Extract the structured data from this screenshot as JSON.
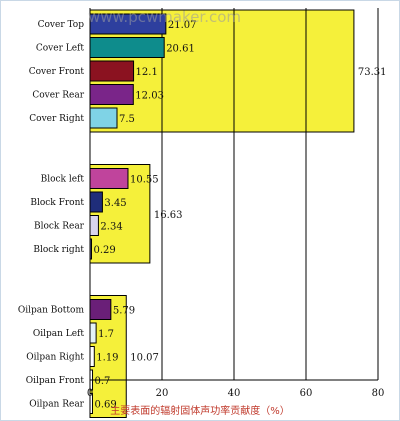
{
  "chart_data": {
    "type": "bar",
    "orientation": "horizontal",
    "title": "",
    "xlabel": "主要表面的辐射固体声功率贡献度（%）",
    "ylabel": "",
    "xlim": [
      0,
      80
    ],
    "xticks": [
      0,
      20,
      40,
      60,
      80
    ],
    "grid": true,
    "watermark": "www.pcwmaker.com",
    "groups": [
      {
        "total": 73.31,
        "total_label": "73.31",
        "bars": [
          {
            "category": "Cover Top",
            "value": 21.07,
            "label": "21.07",
            "color": "#2e3f9e"
          },
          {
            "category": "Cover Left",
            "value": 20.61,
            "label": "20.61",
            "color": "#0e8c8c"
          },
          {
            "category": "Cover Front",
            "value": 12.1,
            "label": "12.1",
            "color": "#8b1220"
          },
          {
            "category": "Cover Rear",
            "value": 12.03,
            "label": "12.03",
            "color": "#7a2589"
          },
          {
            "category": "Cover Right",
            "value": 7.5,
            "label": "7.5",
            "color": "#7fd3e6"
          }
        ]
      },
      {
        "total": 16.63,
        "total_label": "16.63",
        "bars": [
          {
            "category": "Block left",
            "value": 10.55,
            "label": "10.55",
            "color": "#c0449c"
          },
          {
            "category": "Block Front",
            "value": 3.45,
            "label": "3.45",
            "color": "#1f2d7a"
          },
          {
            "category": "Block Rear",
            "value": 2.34,
            "label": "2.34",
            "color": "#d8d4ec"
          },
          {
            "category": "Block right",
            "value": 0.29,
            "label": "0.29",
            "color": "#5a5a9a"
          }
        ]
      },
      {
        "total": 10.07,
        "total_label": "10.07",
        "bars": [
          {
            "category": "Oilpan Bottom",
            "value": 5.79,
            "label": "5.79",
            "color": "#6a1f78"
          },
          {
            "category": "Oilpan Left",
            "value": 1.7,
            "label": "1.7",
            "color": "#e4f3f8"
          },
          {
            "category": "Oilpan Right",
            "value": 1.19,
            "label": "1.19",
            "color": "#ffffff"
          },
          {
            "category": "Oilpan Front",
            "value": 0.7,
            "label": "0.7",
            "color": "#ffffff"
          },
          {
            "category": "Oilpan Rear",
            "value": 0.69,
            "label": "0.69",
            "color": "#ffffff"
          }
        ]
      }
    ],
    "total_color": "#f5f03a"
  }
}
